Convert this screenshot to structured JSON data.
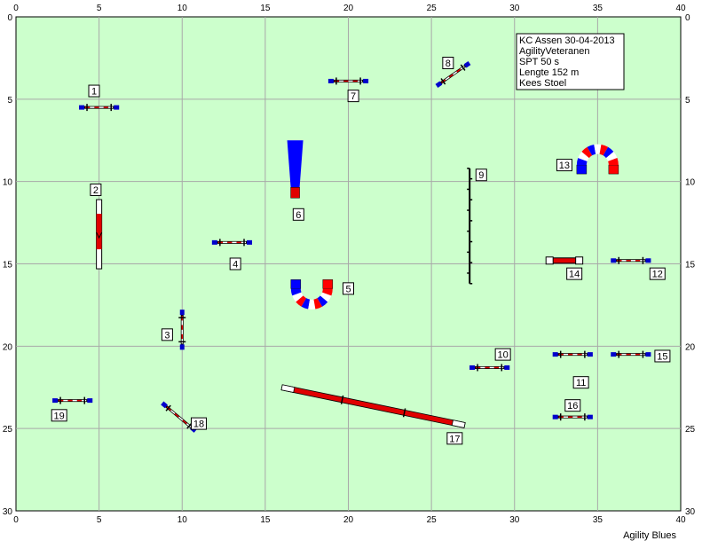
{
  "course": {
    "info": [
      "KC Assen 30-04-2013",
      "AgilityVeteranen",
      "SPT 50 s",
      "Lengte 152 m",
      "Kees Stoel"
    ],
    "x_range": [
      0,
      40
    ],
    "y_range": [
      0,
      30
    ],
    "x_ticks": [
      0,
      5,
      10,
      15,
      20,
      25,
      30,
      35,
      40
    ],
    "y_ticks": [
      0,
      5,
      10,
      15,
      20,
      25,
      30
    ],
    "grid": true,
    "background_color": "#ccffcc",
    "grid_color": "#a8a8a8",
    "obstacles": [
      {
        "number": "1",
        "type": "hurdle",
        "x": 5.0,
        "y": 5.5,
        "angle": 0,
        "length": 2.2
      },
      {
        "number": "2",
        "type": "long_jump_panel",
        "x": 5.0,
        "y": 13.2,
        "angle": 90,
        "length": 4.2
      },
      {
        "number": "3",
        "type": "hurdle",
        "x": 10.0,
        "y": 19.0,
        "angle": 90,
        "length": 2.2
      },
      {
        "number": "4",
        "type": "hurdle",
        "x": 13.0,
        "y": 13.7,
        "angle": 0,
        "length": 2.2
      },
      {
        "number": "5",
        "type": "tunnel_u",
        "x": 17.8,
        "y": 16.5,
        "opening": "up"
      },
      {
        "number": "6",
        "type": "closed_tunnel",
        "x": 16.8,
        "y": 7.5
      },
      {
        "number": "7",
        "type": "hurdle",
        "x": 20.0,
        "y": 3.9,
        "angle": 0,
        "length": 2.2
      },
      {
        "number": "8",
        "type": "hurdle",
        "x": 26.3,
        "y": 3.5,
        "angle": -35,
        "length": 2.2
      },
      {
        "number": "9",
        "type": "weave_poles",
        "x": 27.3,
        "y": 9.2,
        "length": 7.0,
        "poles": 12
      },
      {
        "number": "10",
        "type": "hurdle",
        "x": 28.5,
        "y": 21.3,
        "angle": 0,
        "length": 2.2
      },
      {
        "number": "11",
        "type": "hurdle",
        "x": 33.5,
        "y": 20.5,
        "angle": 0,
        "length": 2.2
      },
      {
        "number": "12",
        "type": "hurdle",
        "x": 37.0,
        "y": 14.8,
        "angle": 0,
        "length": 2.2
      },
      {
        "number": "13",
        "type": "tunnel_u",
        "x": 35.0,
        "y": 9.0,
        "opening": "down"
      },
      {
        "number": "14",
        "type": "tire_frame",
        "x": 33.0,
        "y": 14.8,
        "length": 2.0
      },
      {
        "number": "15",
        "type": "hurdle",
        "x": 37.0,
        "y": 20.5,
        "angle": 0,
        "length": 2.2
      },
      {
        "number": "16",
        "type": "hurdle",
        "x": 33.5,
        "y": 24.3,
        "angle": 0,
        "length": 2.2
      },
      {
        "number": "17",
        "type": "dog_walk",
        "x1": 16.0,
        "y1": 22.5,
        "x2": 27.0,
        "y2": 24.8
      },
      {
        "number": "18",
        "type": "hurdle",
        "x": 9.8,
        "y": 24.3,
        "angle": 40,
        "length": 2.4
      },
      {
        "number": "19",
        "type": "hurdle",
        "x": 3.4,
        "y": 23.3,
        "angle": 0,
        "length": 2.2
      }
    ],
    "labels": [
      {
        "text": "1",
        "x": 4.7,
        "y": 4.5
      },
      {
        "text": "2",
        "x": 4.8,
        "y": 10.5
      },
      {
        "text": "3",
        "x": 9.1,
        "y": 19.3
      },
      {
        "text": "4",
        "x": 13.2,
        "y": 15.0
      },
      {
        "text": "5",
        "x": 20.0,
        "y": 16.5
      },
      {
        "text": "6",
        "x": 17.0,
        "y": 12.0
      },
      {
        "text": "7",
        "x": 20.3,
        "y": 4.8
      },
      {
        "text": "8",
        "x": 26.0,
        "y": 2.8
      },
      {
        "text": "9",
        "x": 28.0,
        "y": 9.6
      },
      {
        "text": "10",
        "x": 29.3,
        "y": 20.5
      },
      {
        "text": "11",
        "x": 34.0,
        "y": 22.2
      },
      {
        "text": "12",
        "x": 38.6,
        "y": 15.6
      },
      {
        "text": "13",
        "x": 33.0,
        "y": 9.0
      },
      {
        "text": "14",
        "x": 33.6,
        "y": 15.6
      },
      {
        "text": "15",
        "x": 38.9,
        "y": 20.6
      },
      {
        "text": "16",
        "x": 33.5,
        "y": 23.6
      },
      {
        "text": "17",
        "x": 26.4,
        "y": 25.6
      },
      {
        "text": "18",
        "x": 11.0,
        "y": 24.7
      },
      {
        "text": "19",
        "x": 2.6,
        "y": 24.2
      }
    ]
  },
  "brand": "Agility Blues"
}
